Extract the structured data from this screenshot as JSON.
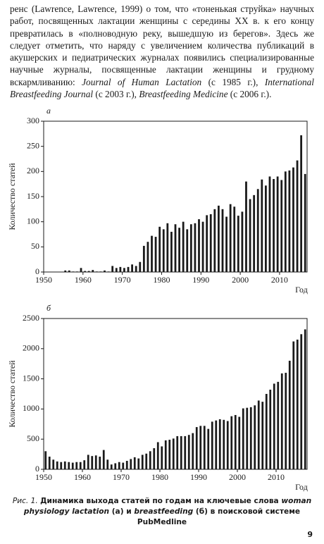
{
  "text": [
    {
      "text": "ренс (Lawrence, Lawrence, 1999) о том, что «тоненькая струйка» научных работ, посвященных лактации женщины с середины XX в. к его концу превратилась в «полноводную реку, вышедшую из берегов». Здесь же следует отметить, что наряду с увеличением количества публикаций в акушерских и педиатрических журналах появились специализированные научные журналы, посвященные лактации женщины и грудному вскармливанию: ",
      "italic": false
    },
    {
      "text": "Journal of Human Lactation",
      "italic": true
    },
    {
      "text": " (с 1985 г.), ",
      "italic": false
    },
    {
      "text": "International Breastfeeding Journal",
      "italic": true
    },
    {
      "text": " (с 2003 г.), ",
      "italic": false
    },
    {
      "text": "Breastfeeding Medicine",
      "italic": true
    },
    {
      "text": " (с 2006 г.).",
      "italic": false
    }
  ],
  "chart_data": [
    {
      "type": "bar",
      "label": "а",
      "ylabel": "Количество статей",
      "xlabel": "Год",
      "color": "#1a1a1a",
      "x": [
        1950,
        1951,
        1952,
        1953,
        1954,
        1955,
        1956,
        1957,
        1958,
        1959,
        1960,
        1961,
        1962,
        1963,
        1964,
        1965,
        1966,
        1967,
        1968,
        1969,
        1970,
        1971,
        1972,
        1973,
        1974,
        1975,
        1976,
        1977,
        1978,
        1979,
        1980,
        1981,
        1982,
        1983,
        1984,
        1985,
        1986,
        1987,
        1988,
        1989,
        1990,
        1991,
        1992,
        1993,
        1994,
        1995,
        1996,
        1997,
        1998,
        1999,
        2000,
        2001,
        2002,
        2003,
        2004,
        2005,
        2006,
        2007,
        2008,
        2009,
        2010,
        2011,
        2012,
        2013,
        2014,
        2015,
        2016
      ],
      "values": [
        0,
        0,
        0,
        0,
        0,
        3,
        3,
        1,
        1,
        8,
        2,
        2,
        4,
        1,
        1,
        3,
        1,
        12,
        8,
        10,
        8,
        10,
        15,
        12,
        20,
        52,
        60,
        72,
        70,
        90,
        85,
        97,
        80,
        95,
        88,
        100,
        85,
        95,
        97,
        105,
        100,
        113,
        115,
        125,
        132,
        125,
        110,
        135,
        130,
        112,
        120,
        180,
        145,
        153,
        165,
        184,
        172,
        190,
        185,
        190,
        183,
        200,
        202,
        208,
        222,
        272,
        195
      ],
      "xlim": [
        1950,
        2017
      ],
      "xticks": [
        1950,
        1960,
        1970,
        1980,
        1990,
        2000,
        2010
      ],
      "ylim": [
        0,
        300
      ],
      "yticks": [
        0,
        50,
        100,
        150,
        200,
        250,
        300
      ]
    },
    {
      "type": "bar",
      "label": "б",
      "ylabel": "Количество статей",
      "xlabel": "Год",
      "color": "#1a1a1a",
      "x": [
        1950,
        1951,
        1952,
        1953,
        1954,
        1955,
        1956,
        1957,
        1958,
        1959,
        1960,
        1961,
        1962,
        1963,
        1964,
        1965,
        1966,
        1967,
        1968,
        1969,
        1970,
        1971,
        1972,
        1973,
        1974,
        1975,
        1976,
        1977,
        1978,
        1979,
        1980,
        1981,
        1982,
        1983,
        1984,
        1985,
        1986,
        1987,
        1988,
        1989,
        1990,
        1991,
        1992,
        1993,
        1994,
        1995,
        1996,
        1997,
        1998,
        1999,
        2000,
        2001,
        2002,
        2003,
        2004,
        2005,
        2006,
        2007,
        2008,
        2009,
        2010,
        2011,
        2012,
        2013,
        2014,
        2015,
        2016,
        2017
      ],
      "values": [
        300,
        210,
        160,
        130,
        120,
        130,
        120,
        110,
        120,
        120,
        150,
        240,
        220,
        230,
        210,
        320,
        160,
        80,
        100,
        120,
        110,
        140,
        170,
        200,
        180,
        240,
        260,
        300,
        350,
        450,
        380,
        480,
        490,
        510,
        550,
        550,
        550,
        570,
        600,
        700,
        720,
        720,
        670,
        790,
        810,
        830,
        820,
        800,
        880,
        900,
        870,
        1010,
        1020,
        1030,
        1060,
        1140,
        1120,
        1250,
        1320,
        1420,
        1450,
        1590,
        1600,
        1800,
        2120,
        2150,
        2240,
        2320
      ],
      "xlim": [
        1950,
        2018
      ],
      "xticks": [
        1950,
        1960,
        1970,
        1980,
        1990,
        2000,
        2010
      ],
      "ylim": [
        0,
        2500
      ],
      "yticks": [
        0,
        500,
        1000,
        1500,
        2000,
        2500
      ]
    }
  ],
  "caption": [
    {
      "text": "Рис. 1. ",
      "style": "i"
    },
    {
      "text": "Динамика выхода статей по годам на ключевые слова ",
      "style": "b"
    },
    {
      "text": "woman physiology lactation",
      "style": "bi"
    },
    {
      "text": " (а) и ",
      "style": "b"
    },
    {
      "text": "breastfeeding",
      "style": "bi"
    },
    {
      "text": " (б) в поисковой системе PubMedline",
      "style": "b"
    }
  ],
  "page_number": "9"
}
